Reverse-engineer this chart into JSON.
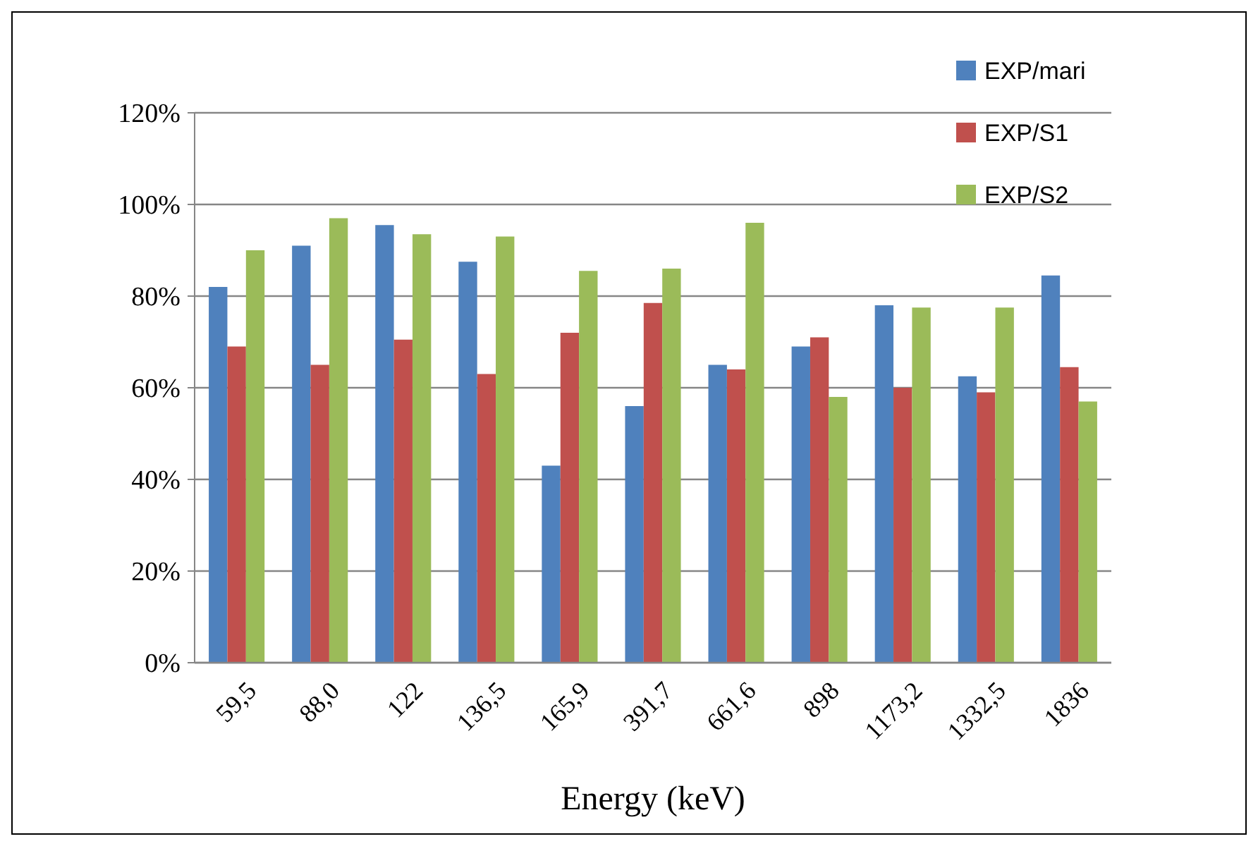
{
  "chart_data": {
    "type": "bar",
    "xlabel": "Energy (keV)",
    "categories": [
      "59,5",
      "88,0",
      "122",
      "136,5",
      "165,9",
      "391,7",
      "661,6",
      "898",
      "1173,2",
      "1332,5",
      "1836"
    ],
    "series": [
      {
        "name": "EXP/mari",
        "color": "#4f81bd",
        "values": [
          82,
          91,
          95.5,
          87.5,
          43,
          56,
          65,
          69,
          78,
          62.5,
          84.5
        ]
      },
      {
        "name": "EXP/S1",
        "color": "#c0504d",
        "values": [
          69,
          65,
          70.5,
          63,
          72,
          78.5,
          64,
          71,
          60,
          59,
          64.5
        ]
      },
      {
        "name": "EXP/S2",
        "color": "#9bbb59",
        "values": [
          90,
          97,
          93.5,
          93,
          85.5,
          86,
          96,
          58,
          77.5,
          77.5,
          57
        ]
      }
    ],
    "ylim": [
      0,
      120
    ],
    "yticks": [
      {
        "value": 0,
        "label": "0%"
      },
      {
        "value": 20,
        "label": "20%"
      },
      {
        "value": 40,
        "label": "40%"
      },
      {
        "value": 60,
        "label": "60%"
      },
      {
        "value": 80,
        "label": "80%"
      },
      {
        "value": 100,
        "label": "100%"
      },
      {
        "value": 120,
        "label": "120%"
      }
    ],
    "grid": "y",
    "legend": "right"
  }
}
